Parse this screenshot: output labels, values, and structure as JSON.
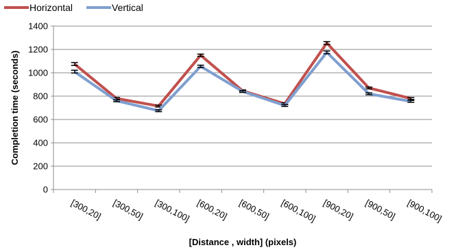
{
  "chart_data": {
    "type": "line",
    "xlabel": "[Distance , width]  (pixels)",
    "ylabel": "Completion time (seconds)",
    "ylim": [
      0,
      1400
    ],
    "yticks": [
      0,
      200,
      400,
      600,
      800,
      1000,
      1200,
      1400
    ],
    "grid": "horizontal",
    "legend_position": "top-left",
    "categories": [
      "[300,20]",
      "[300,50]",
      "[300,100]",
      "[600,20]",
      "[600,50]",
      "[600,100]",
      "[900,20]",
      "[900,50]",
      "[900,100]"
    ],
    "series": [
      {
        "name": "Horizontal",
        "color": "#c0504d",
        "values": [
          1075,
          780,
          715,
          1150,
          845,
          735,
          1255,
          870,
          780
        ],
        "error": [
          12,
          8,
          8,
          10,
          8,
          8,
          12,
          8,
          8
        ]
      },
      {
        "name": "Vertical",
        "color": "#7f9fcf",
        "values": [
          1010,
          760,
          675,
          1055,
          840,
          720,
          1175,
          820,
          755
        ],
        "error": [
          12,
          8,
          8,
          10,
          8,
          8,
          12,
          8,
          8
        ]
      }
    ]
  }
}
